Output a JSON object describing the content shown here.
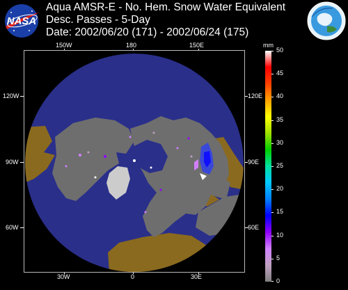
{
  "header": {
    "logo_left": {
      "icon": "nasa-meatball-icon",
      "text": "NASA"
    },
    "logo_right": {
      "icon": "earth-observing-system-logo"
    },
    "title_line1": "Aqua AMSR-E - No. Hem. Snow Water Equivalent",
    "title_line2": "Desc. Passes - 5-Day",
    "title_line3": "Date: 2002/06/20 (171) - 2002/06/24 (175)"
  },
  "map": {
    "projection": "North polar azimuthal",
    "longitude_labels_top": [
      "150W",
      "180",
      "150E"
    ],
    "longitude_labels_bottom": [
      "30W",
      "0",
      "30E"
    ],
    "longitude_labels_left": [
      "120W",
      "90W",
      "60W"
    ],
    "longitude_labels_right": [
      "120E",
      "90E",
      "60E"
    ],
    "colors": {
      "ocean": "#2a2f8a",
      "land_no_snow": "#6e6e6e",
      "ice_sheet": "#cccccc",
      "masked": "#8a6a1e",
      "background": "#000000"
    }
  },
  "legend": {
    "unit": "mm",
    "min": 0,
    "max": 50,
    "tick_values": [
      0,
      5,
      10,
      15,
      20,
      25,
      30,
      35,
      40,
      45,
      50
    ],
    "tick_labels": [
      "0",
      "5",
      "10",
      "15",
      "20",
      "25",
      "30",
      "35",
      "40",
      "45",
      "50"
    ],
    "colors": [
      "#808080",
      "#c0a0c0",
      "#d080ff",
      "#9000ff",
      "#0000ff",
      "#0080ff",
      "#00c8ff",
      "#00e0a0",
      "#00d000",
      "#a0e000",
      "#ffff00",
      "#ffa000",
      "#ff4000",
      "#ff0000",
      "#ffffff"
    ]
  }
}
